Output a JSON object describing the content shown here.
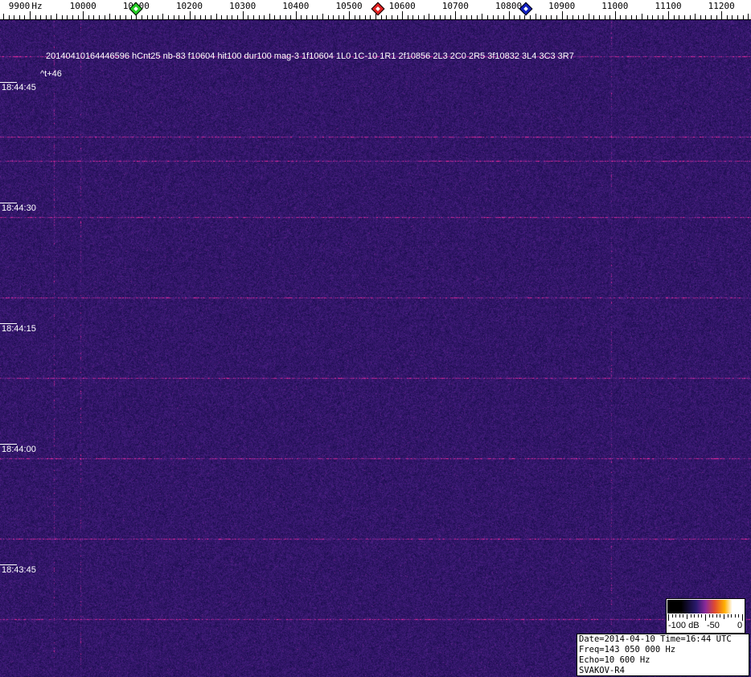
{
  "chart_data": {
    "type": "heatmap",
    "title": "",
    "xlabel": "Hz",
    "x_unit_label": "Hz",
    "xlim": [
      9875,
      11270
    ],
    "x_tick_labels": [
      "9900",
      "10000",
      "10100",
      "10200",
      "10300",
      "10400",
      "10500",
      "10600",
      "10700",
      "10800",
      "10900",
      "11000",
      "11100",
      "11200"
    ],
    "x_ticks": [
      9900,
      10000,
      10100,
      10200,
      10300,
      10400,
      10500,
      10600,
      10700,
      10800,
      10900,
      11000,
      11100,
      11200
    ],
    "x_minor_step": 10,
    "y_tick_labels": [
      "18:44:45",
      "18:44:30",
      "18:44:15",
      "18:44:00",
      "18:43:45"
    ],
    "markers": [
      {
        "color": "#22cc22",
        "freq": 10100
      },
      {
        "color": "#e02020",
        "freq": 10555
      },
      {
        "color": "#1020c0",
        "freq": 10832
      }
    ],
    "colorbar": {
      "labels": [
        "-100 dB",
        "-50",
        "0"
      ],
      "range_db": [
        -100,
        0
      ]
    },
    "colors": {
      "background": "#2b1d72",
      "signal": "#a03090"
    }
  },
  "annotations": {
    "detection": "20140410164446596 hCnt25 nb-83 f10604 hit100 dur100 mag-3 1f10604 1L0 1C-10 1R1 2f10856 2L3 2C0 2R5 3f10832 3L4 3C3 3R7",
    "offset": "^t+46"
  },
  "info": {
    "line1": "Date=2014-04-10 Time=16:44 UTC",
    "line2": "Freq=143 050 000 Hz",
    "line3": "Echo=10 600 Hz",
    "line4": "SVAKOV-R4"
  }
}
